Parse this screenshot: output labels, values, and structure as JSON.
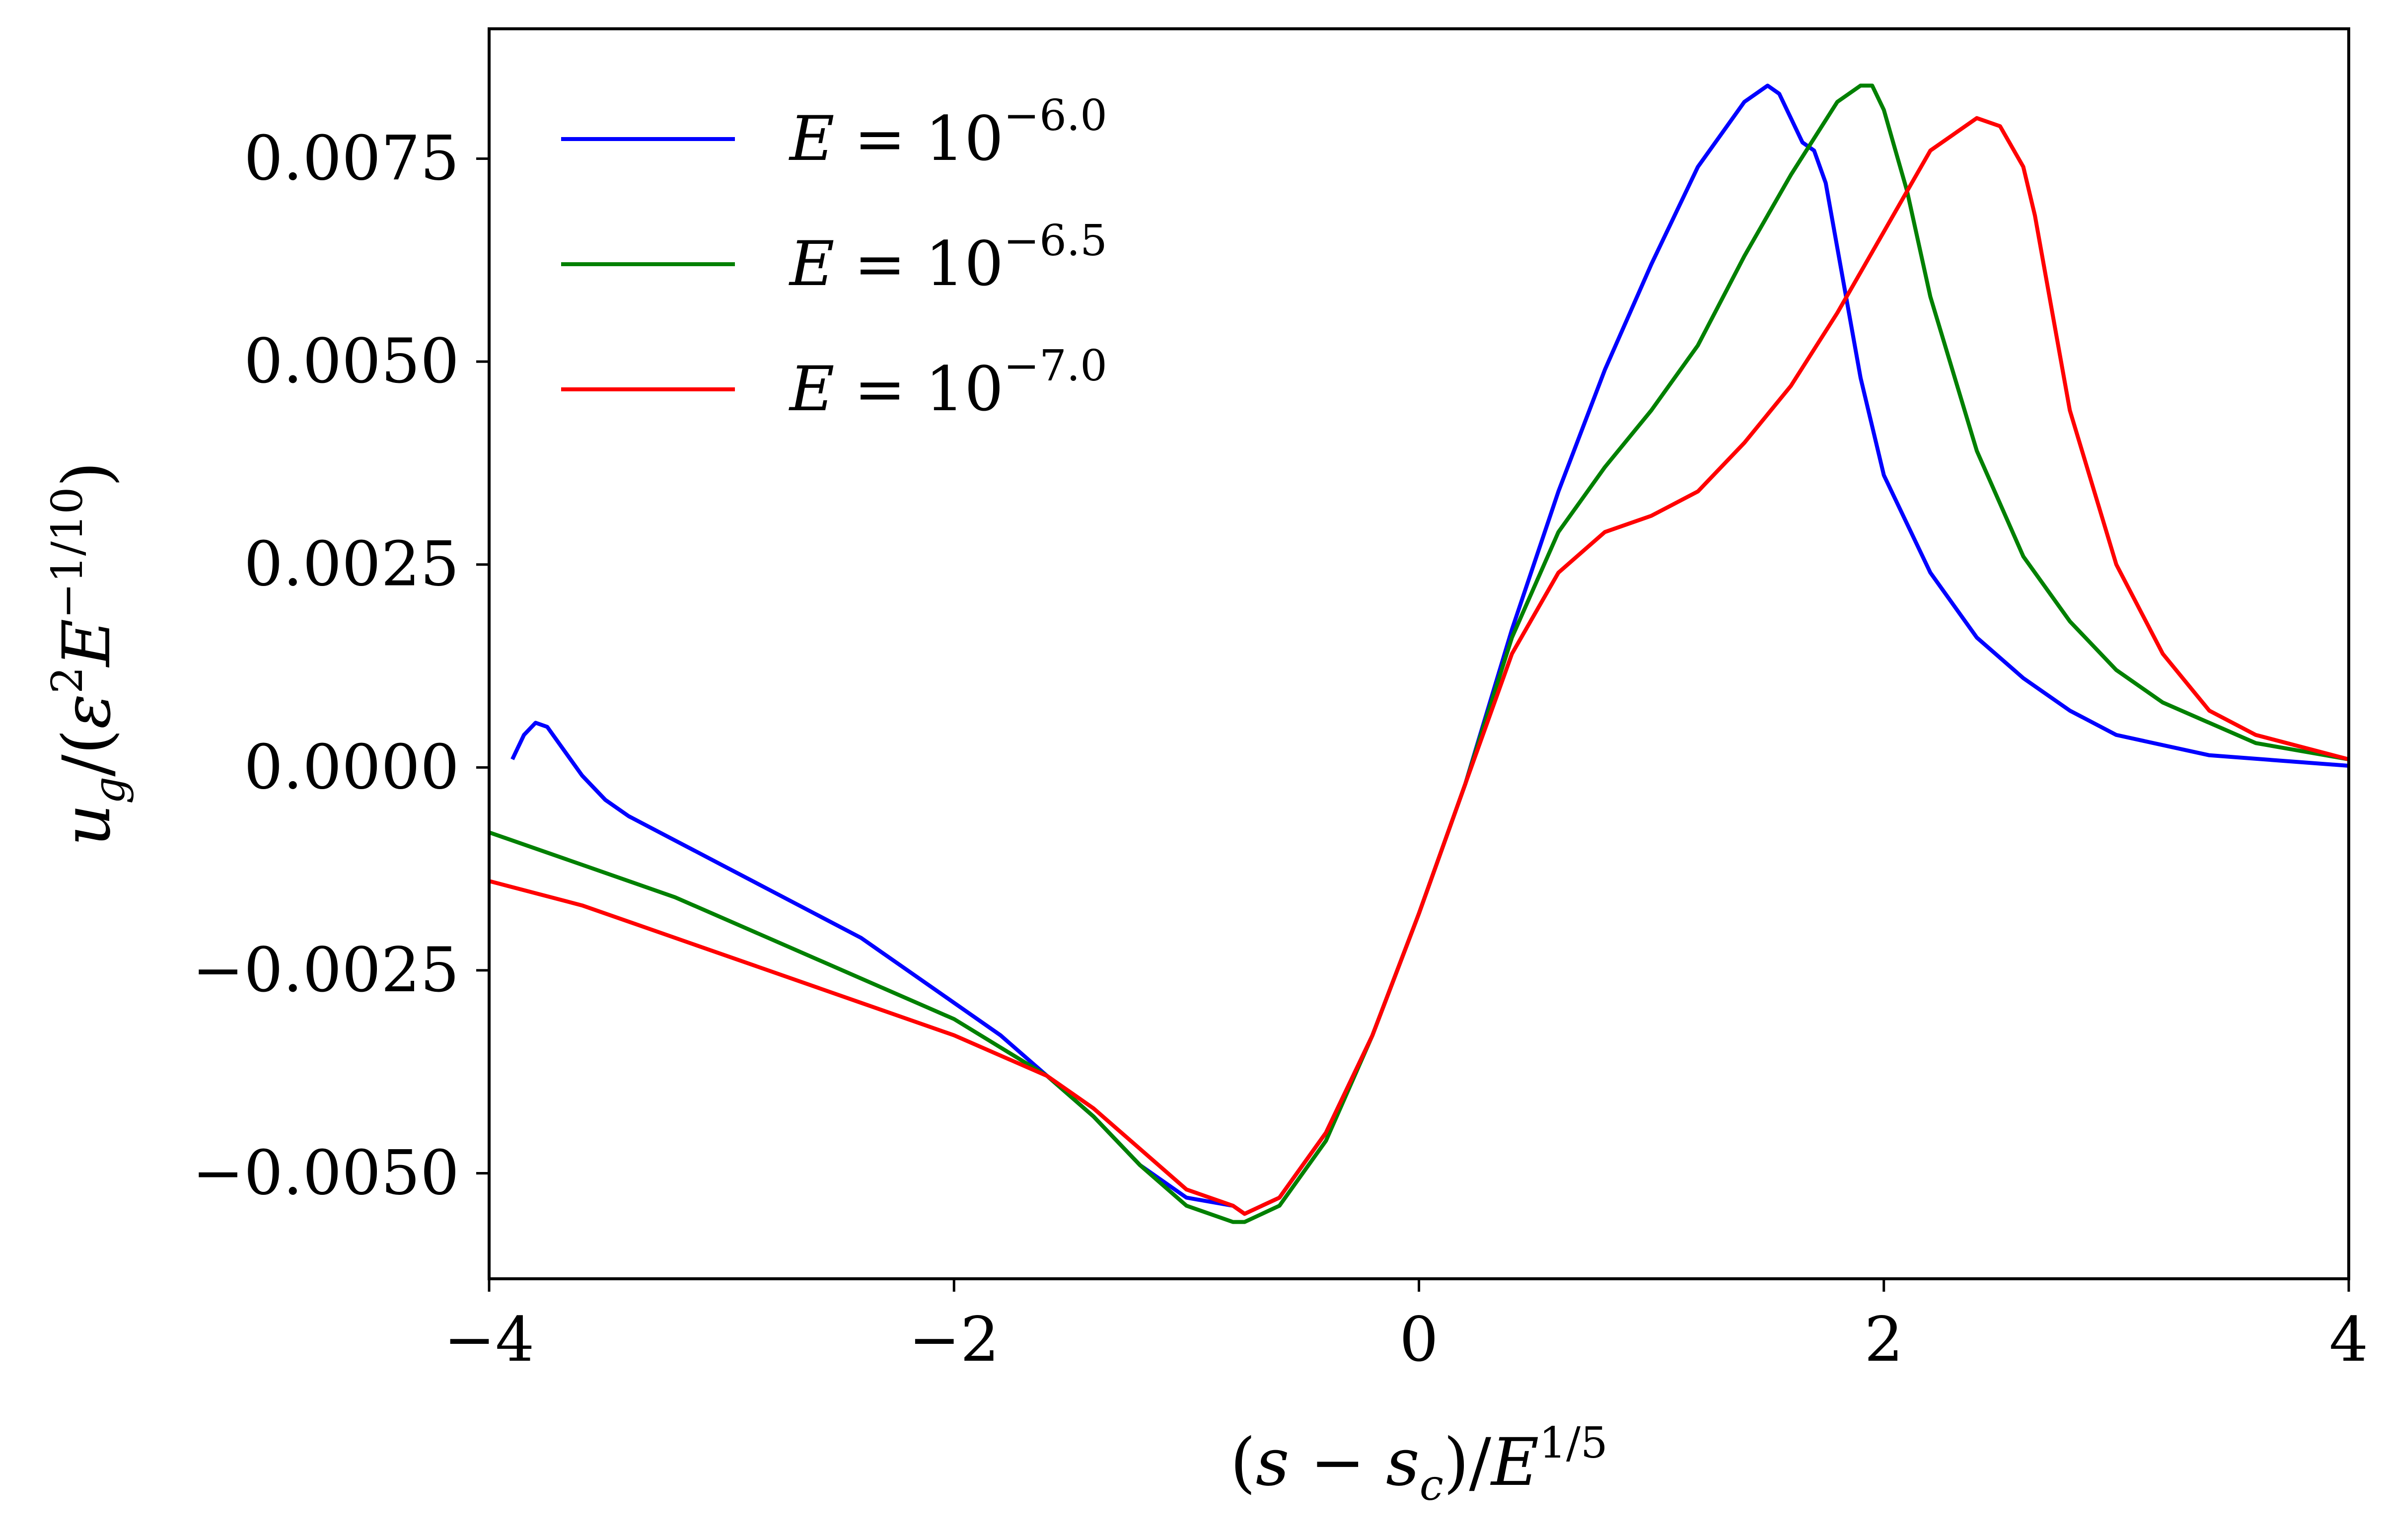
{
  "chart_data": {
    "type": "line",
    "title": "",
    "xlabel": "(s − s_c)/E^{1/5}",
    "ylabel": "u_g/(ε²E^{−1/10})",
    "xlim": [
      -4,
      4
    ],
    "ylim": [
      -0.0063,
      0.0091
    ],
    "x_ticks": [
      -4,
      -2,
      0,
      2,
      4
    ],
    "x_tick_labels": [
      "−4",
      "−2",
      "0",
      "2",
      "4"
    ],
    "y_ticks": [
      -0.005,
      -0.0025,
      0.0,
      0.0025,
      0.005,
      0.0075
    ],
    "y_tick_labels": [
      "−0.0050",
      "−0.0025",
      "0.0000",
      "0.0025",
      "0.0050",
      "0.0075"
    ],
    "grid": false,
    "legend_position": "top-left",
    "series": [
      {
        "name": "E = 10^{−6.0}",
        "legend": {
          "base": "E = 10",
          "exp": "−6.0"
        },
        "color": "#0000ff",
        "x": [
          -3.9,
          -3.85,
          -3.8,
          -3.75,
          -3.7,
          -3.6,
          -3.5,
          -3.4,
          -3.2,
          -3.0,
          -2.8,
          -2.6,
          -2.4,
          -2.2,
          -2.0,
          -1.8,
          -1.6,
          -1.4,
          -1.2,
          -1.0,
          -0.8,
          -0.75,
          -0.6,
          -0.4,
          -0.2,
          0.0,
          0.2,
          0.4,
          0.6,
          0.8,
          1.0,
          1.2,
          1.4,
          1.5,
          1.55,
          1.6,
          1.65,
          1.7,
          1.75,
          1.8,
          1.9,
          2.0,
          2.2,
          2.4,
          2.6,
          2.8,
          3.0,
          3.4,
          4.0
        ],
        "y": [
          0.0001,
          0.0004,
          0.00055,
          0.0005,
          0.0003,
          -0.0001,
          -0.0004,
          -0.0006,
          -0.0009,
          -0.0012,
          -0.0015,
          -0.0018,
          -0.0021,
          -0.0025,
          -0.0029,
          -0.0033,
          -0.0038,
          -0.0043,
          -0.0049,
          -0.0053,
          -0.0054,
          -0.0055,
          -0.0053,
          -0.0045,
          -0.0033,
          -0.0018,
          -0.0002,
          0.0017,
          0.0034,
          0.0049,
          0.0062,
          0.0074,
          0.0082,
          0.0084,
          0.0083,
          0.008,
          0.0077,
          0.0076,
          0.0072,
          0.0064,
          0.0048,
          0.0036,
          0.0024,
          0.0016,
          0.0011,
          0.0007,
          0.0004,
          0.00015,
          2e-05
        ]
      },
      {
        "name": "E = 10^{−6.5}",
        "legend": {
          "base": "E = 10",
          "exp": "−6.5"
        },
        "color": "#008000",
        "x": [
          -4.0,
          -3.6,
          -3.2,
          -2.8,
          -2.4,
          -2.0,
          -1.6,
          -1.4,
          -1.2,
          -1.0,
          -0.8,
          -0.75,
          -0.6,
          -0.4,
          -0.2,
          0.0,
          0.2,
          0.4,
          0.6,
          0.8,
          1.0,
          1.2,
          1.4,
          1.6,
          1.8,
          1.9,
          1.95,
          2.0,
          2.05,
          2.1,
          2.2,
          2.4,
          2.6,
          2.8,
          3.0,
          3.2,
          3.6,
          4.0
        ],
        "y": [
          -0.0008,
          -0.0012,
          -0.0016,
          -0.0021,
          -0.0026,
          -0.0031,
          -0.0038,
          -0.0043,
          -0.0049,
          -0.0054,
          -0.0056,
          -0.0056,
          -0.0054,
          -0.0046,
          -0.0033,
          -0.0018,
          -0.0002,
          0.0016,
          0.0029,
          0.0037,
          0.0044,
          0.0052,
          0.0063,
          0.0073,
          0.0082,
          0.0084,
          0.0084,
          0.0081,
          0.0076,
          0.0071,
          0.0058,
          0.0039,
          0.0026,
          0.0018,
          0.0012,
          0.0008,
          0.0003,
          0.0001
        ]
      },
      {
        "name": "E = 10^{−7.0}",
        "legend": {
          "base": "E = 10",
          "exp": "−7.0"
        },
        "color": "#ff0000",
        "x": [
          -4.0,
          -3.6,
          -3.2,
          -2.8,
          -2.4,
          -2.0,
          -1.6,
          -1.4,
          -1.2,
          -1.0,
          -0.8,
          -0.75,
          -0.6,
          -0.4,
          -0.2,
          0.0,
          0.2,
          0.4,
          0.6,
          0.8,
          1.0,
          1.2,
          1.4,
          1.6,
          1.8,
          2.0,
          2.2,
          2.4,
          2.5,
          2.6,
          2.65,
          2.7,
          2.8,
          3.0,
          3.2,
          3.4,
          3.6,
          4.0
        ],
        "y": [
          -0.0014,
          -0.0017,
          -0.0021,
          -0.0025,
          -0.0029,
          -0.0033,
          -0.0038,
          -0.0042,
          -0.0047,
          -0.0052,
          -0.0054,
          -0.0055,
          -0.0053,
          -0.0045,
          -0.0033,
          -0.0018,
          -0.0002,
          0.0014,
          0.0024,
          0.0029,
          0.0031,
          0.0034,
          0.004,
          0.0047,
          0.0056,
          0.0066,
          0.0076,
          0.008,
          0.0079,
          0.0074,
          0.0068,
          0.006,
          0.0044,
          0.0025,
          0.0014,
          0.0007,
          0.0004,
          0.0001
        ]
      }
    ]
  }
}
